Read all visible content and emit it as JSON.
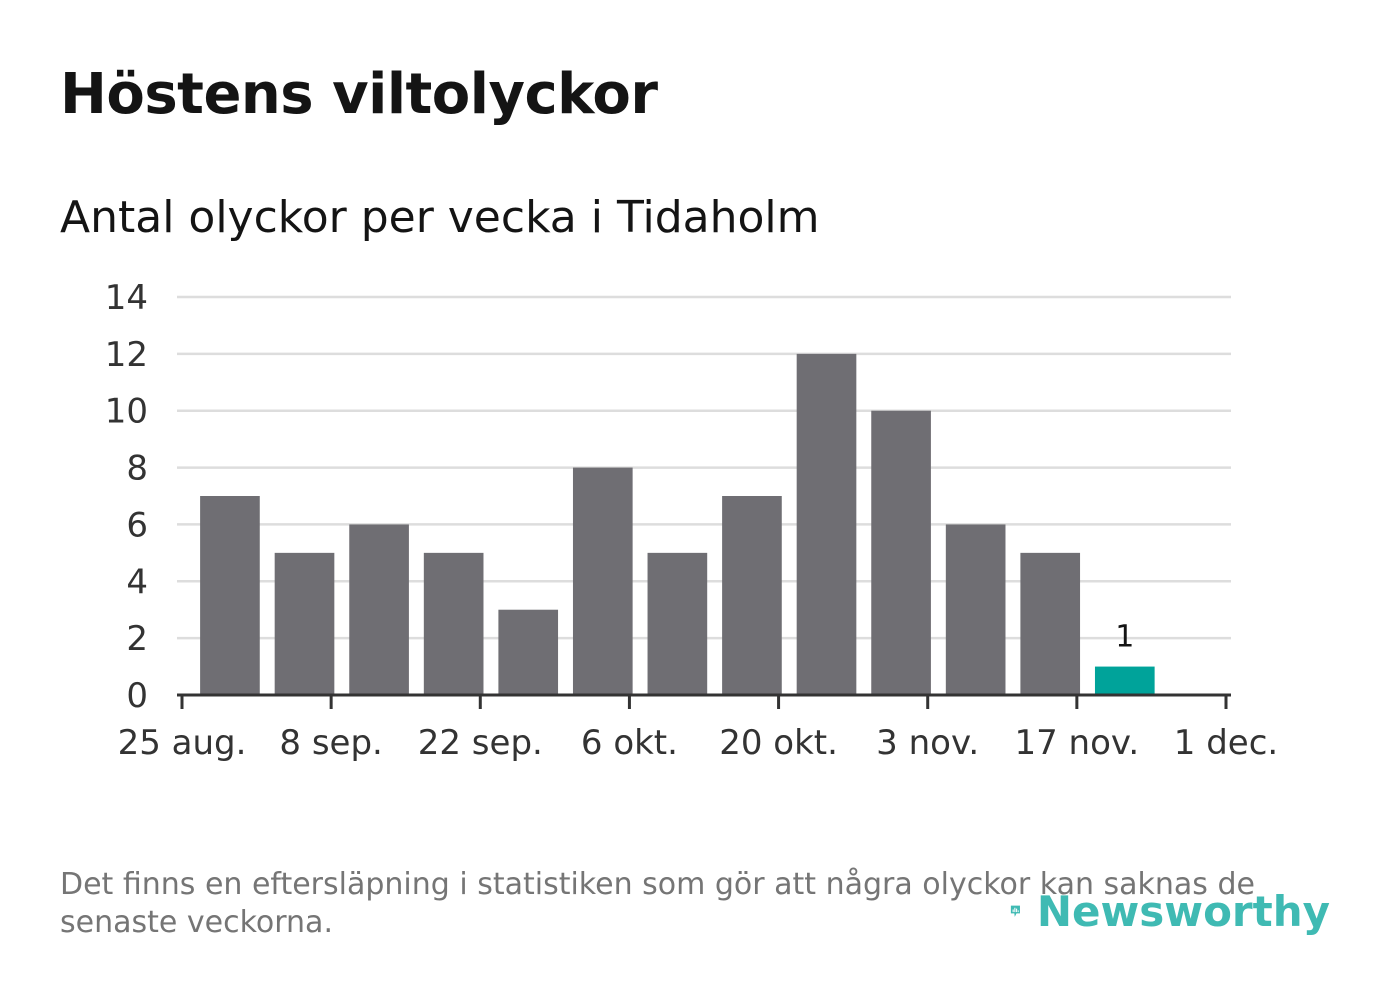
{
  "header": {
    "title": "Höstens viltolyckor",
    "subtitle": "Antal olyckor per vecka i Tidaholm"
  },
  "footer": {
    "note": "Det finns en eftersläpning i statistiken som gör att några olyckor kan saknas de senaste veckorna.",
    "brand": "Newsworthy",
    "brand_color": "#00a39a"
  },
  "chart_data": {
    "type": "bar",
    "categories": [
      "2024-08-26",
      "2024-09-02",
      "2024-09-09",
      "2024-09-16",
      "2024-09-23",
      "2024-09-30",
      "2024-10-07",
      "2024-10-14",
      "2024-10-21",
      "2024-10-28",
      "2024-11-04",
      "2024-11-11",
      "2024-11-18"
    ],
    "values": [
      7,
      5,
      6,
      5,
      3,
      8,
      5,
      7,
      12,
      10,
      6,
      5,
      1
    ],
    "highlight_last": true,
    "last_label": "1",
    "bar_color": "#6f6e73",
    "highlight_color": "#00a39a",
    "grid_color": "#dddddd",
    "ylim": [
      0,
      14
    ],
    "yticks": [
      0,
      2,
      4,
      6,
      8,
      10,
      12,
      14
    ],
    "xticks": [
      {
        "date": "2024-08-25",
        "label": "25 aug."
      },
      {
        "date": "2024-09-08",
        "label": "8 sep."
      },
      {
        "date": "2024-09-22",
        "label": "22 sep."
      },
      {
        "date": "2024-10-06",
        "label": "6 okt."
      },
      {
        "date": "2024-10-20",
        "label": "20 okt."
      },
      {
        "date": "2024-11-03",
        "label": "3 nov."
      },
      {
        "date": "2024-11-17",
        "label": "17 nov."
      },
      {
        "date": "2024-12-01",
        "label": "1 dec."
      }
    ],
    "xlim": [
      "2024-08-25",
      "2024-12-01"
    ],
    "grid": true,
    "legend": "none",
    "xlabel": "",
    "ylabel": ""
  }
}
